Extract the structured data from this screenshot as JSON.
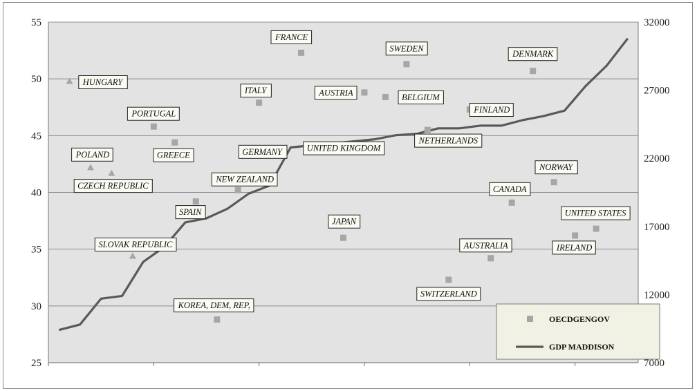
{
  "chart_data": {
    "type": "scatter",
    "title": "",
    "grid": true,
    "legend_position": "bottom-right",
    "y_left": {
      "min": 25,
      "max": 55,
      "ticks": [
        25,
        30,
        35,
        40,
        45,
        50,
        55
      ]
    },
    "y_right": {
      "min": 7000,
      "max": 32000,
      "ticks": [
        7000,
        12000,
        17000,
        22000,
        27000,
        32000
      ]
    },
    "x_range": [
      0,
      28
    ],
    "x_gridlines": [
      0,
      5,
      10,
      15,
      20,
      25
    ],
    "series": [
      {
        "name": "OECDGENGOV",
        "axis": "left",
        "marker": "square",
        "color": "#a6a6a6",
        "points": [
          {
            "label": "HUNGARY",
            "x": 1,
            "y": 49.8,
            "marker": "triangle"
          },
          {
            "label": "POLAND",
            "x": 2,
            "y": 42.2,
            "marker": "triangle"
          },
          {
            "label": "CZECH REPUBLIC",
            "x": 3,
            "y": 41.7,
            "marker": "triangle"
          },
          {
            "label": "SLOVAK REPUBLIC",
            "x": 4,
            "y": 34.4,
            "marker": "triangle"
          },
          {
            "label": "PORTUGAL",
            "x": 5,
            "y": 45.8
          },
          {
            "label": "GREECE",
            "x": 6,
            "y": 44.4
          },
          {
            "label": "SPAIN",
            "x": 7,
            "y": 39.2
          },
          {
            "label": "KOREA, DEM, REP,",
            "x": 8,
            "y": 28.8
          },
          {
            "label": "NEW ZEALAND",
            "x": 9,
            "y": 40.2
          },
          {
            "label": "ITALY",
            "x": 10,
            "y": 47.9
          },
          {
            "label": "GERMANY",
            "x": 11,
            "y": 43.6
          },
          {
            "label": "FRANCE",
            "x": 12,
            "y": 52.3
          },
          {
            "label": "UNITED KINGDOM",
            "x": 13,
            "y": 44.1
          },
          {
            "label": "JAPAN",
            "x": 14,
            "y": 36.0
          },
          {
            "label": "AUSTRIA",
            "x": 15,
            "y": 48.8
          },
          {
            "label": "BELGIUM",
            "x": 16,
            "y": 48.4
          },
          {
            "label": "SWEDEN",
            "x": 17,
            "y": 51.3
          },
          {
            "label": "NETHERLANDS",
            "x": 18,
            "y": 45.5
          },
          {
            "label": "SWITZERLAND",
            "x": 19,
            "y": 32.3
          },
          {
            "label": "FINLAND",
            "x": 20,
            "y": 47.3
          },
          {
            "label": "AUSTRALIA",
            "x": 21,
            "y": 34.2
          },
          {
            "label": "CANADA",
            "x": 22,
            "y": 39.1
          },
          {
            "label": "DENMARK",
            "x": 23,
            "y": 50.7
          },
          {
            "label": "NORWAY",
            "x": 24,
            "y": 40.9
          },
          {
            "label": "IRELAND",
            "x": 25,
            "y": 36.2
          },
          {
            "label": "UNITED STATES",
            "x": 26,
            "y": 36.8
          }
        ]
      },
      {
        "name": "GDP MADDISON",
        "axis": "right",
        "type": "line",
        "color": "#595959",
        "points": [
          {
            "x": 0.5,
            "y": 9400
          },
          {
            "x": 1.5,
            "y": 9800
          },
          {
            "x": 2.5,
            "y": 11700
          },
          {
            "x": 3.5,
            "y": 11900
          },
          {
            "x": 4.5,
            "y": 14400
          },
          {
            "x": 5.5,
            "y": 15500
          },
          {
            "x": 6.5,
            "y": 17300
          },
          {
            "x": 7.5,
            "y": 17600
          },
          {
            "x": 8.5,
            "y": 18300
          },
          {
            "x": 9.5,
            "y": 19400
          },
          {
            "x": 10.5,
            "y": 20000
          },
          {
            "x": 11.5,
            "y": 22800
          },
          {
            "x": 12.5,
            "y": 22950
          },
          {
            "x": 13.5,
            "y": 23100
          },
          {
            "x": 14.5,
            "y": 23250
          },
          {
            "x": 15.5,
            "y": 23400
          },
          {
            "x": 16.5,
            "y": 23700
          },
          {
            "x": 17.5,
            "y": 23800
          },
          {
            "x": 18.5,
            "y": 24200
          },
          {
            "x": 19.5,
            "y": 24200
          },
          {
            "x": 20.5,
            "y": 24400
          },
          {
            "x": 21.5,
            "y": 24400
          },
          {
            "x": 22.5,
            "y": 24800
          },
          {
            "x": 23.5,
            "y": 25100
          },
          {
            "x": 24.5,
            "y": 25500
          },
          {
            "x": 25.5,
            "y": 27300
          },
          {
            "x": 26.5,
            "y": 28800
          },
          {
            "x": 27.5,
            "y": 30800
          }
        ]
      }
    ]
  }
}
